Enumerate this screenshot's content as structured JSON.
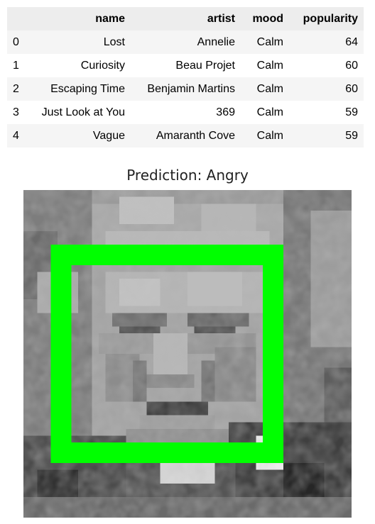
{
  "table": {
    "columns": [
      "",
      "name",
      "artist",
      "mood",
      "popularity"
    ],
    "rows": [
      {
        "index": "0",
        "name": "Lost",
        "artist": "Annelie",
        "mood": "Calm",
        "popularity": "64"
      },
      {
        "index": "1",
        "name": "Curiosity",
        "artist": "Beau Projet",
        "mood": "Calm",
        "popularity": "60"
      },
      {
        "index": "2",
        "name": "Escaping Time",
        "artist": "Benjamin Martins",
        "mood": "Calm",
        "popularity": "60"
      },
      {
        "index": "3",
        "name": "Just Look at You",
        "artist": "369",
        "mood": "Calm",
        "popularity": "59"
      },
      {
        "index": "4",
        "name": "Vague",
        "artist": "Amaranth Cove",
        "mood": "Calm",
        "popularity": "59"
      }
    ]
  },
  "plot": {
    "title": "Prediction: Angry",
    "image_description": "pixelated grayscale face photo",
    "box_color": "#00ff00"
  }
}
